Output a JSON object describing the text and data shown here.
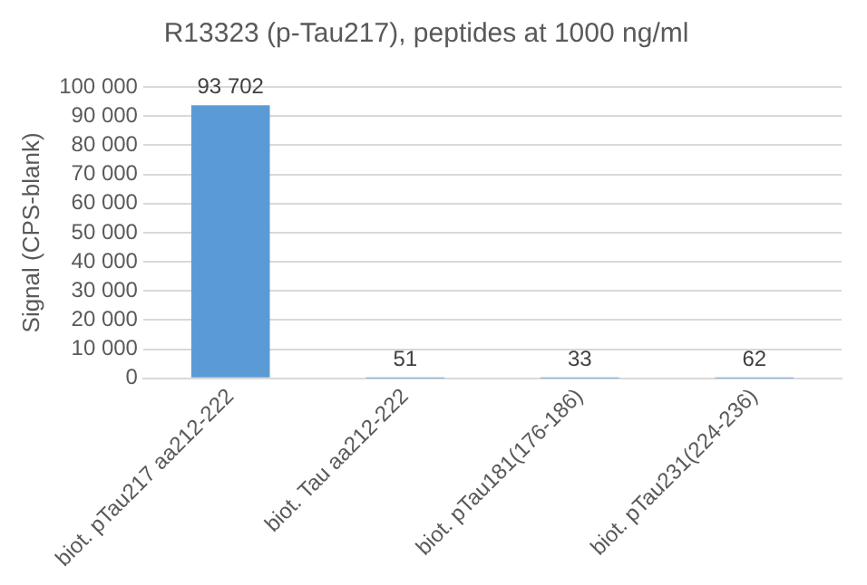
{
  "chart_data": {
    "type": "bar",
    "title": "R13323 (p-Tau217), peptides at 1000 ng/ml",
    "ylabel": "Signal (CPS-blank)",
    "categories": [
      "biot. pTau217 aa212-222",
      "biot. Tau aa212-222",
      "biot. pTau181(176-186)",
      "biot. pTau231(224-236)"
    ],
    "values": [
      93702,
      51,
      33,
      62
    ],
    "value_labels": [
      "93 702",
      "51",
      "33",
      "62"
    ],
    "color": "#5b9bd5",
    "ylim": [
      0,
      100000
    ],
    "yticks": [
      {
        "value": 0,
        "label": "0"
      },
      {
        "value": 10000,
        "label": "10 000"
      },
      {
        "value": 20000,
        "label": "20 000"
      },
      {
        "value": 30000,
        "label": "30 000"
      },
      {
        "value": 40000,
        "label": "40 000"
      },
      {
        "value": 50000,
        "label": "50 000"
      },
      {
        "value": 60000,
        "label": "60 000"
      },
      {
        "value": 70000,
        "label": "70 000"
      },
      {
        "value": 80000,
        "label": "80 000"
      },
      {
        "value": 90000,
        "label": "90 000"
      },
      {
        "value": 100000,
        "label": "100 000"
      }
    ],
    "grid": "y",
    "legend": false
  }
}
